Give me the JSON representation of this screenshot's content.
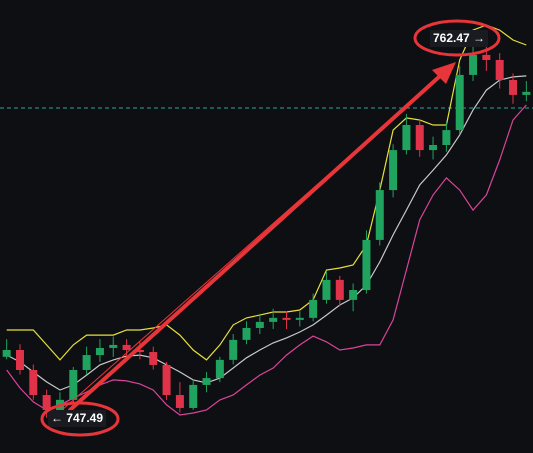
{
  "chart_data": {
    "type": "candlestick",
    "ylim": [
      746.1,
      764.0
    ],
    "up_color": "#1fa35f",
    "down_color": "#e0334a",
    "price_line": 759.73,
    "price_line_color": "#2aa5a0",
    "candles": {
      "open": [
        749.9,
        750.17,
        749.38,
        748.39,
        747.8,
        748.2,
        749.38,
        749.97,
        750.25,
        750.37,
        750.17,
        750.09,
        749.58,
        748.39,
        747.88,
        748.79,
        749.06,
        749.78,
        750.57,
        751.04,
        751.28,
        751.44,
        751.36,
        751.44,
        752.15,
        752.94,
        752.15,
        752.54,
        754.52,
        756.49,
        758.07,
        759.06,
        758.07,
        758.27,
        758.86,
        761.04,
        761.83,
        761.63,
        760.84,
        760.25
      ],
      "high": [
        750.6,
        750.4,
        749.6,
        748.6,
        748.5,
        749.5,
        750.3,
        750.6,
        750.7,
        750.6,
        750.5,
        750.3,
        749.7,
        748.9,
        749.0,
        749.3,
        749.9,
        750.8,
        751.3,
        751.6,
        751.8,
        751.7,
        751.7,
        752.4,
        753.3,
        753.1,
        752.8,
        754.9,
        756.8,
        758.3,
        759.5,
        759.3,
        758.6,
        759.2,
        761.4,
        762.2,
        762.47,
        761.9,
        761.1,
        760.8
      ],
      "low": [
        749.8,
        749.2,
        748.2,
        747.49,
        747.6,
        748.1,
        749.2,
        749.7,
        749.9,
        749.9,
        749.8,
        749.4,
        748.2,
        747.7,
        747.8,
        748.5,
        748.9,
        749.6,
        750.4,
        750.8,
        751.0,
        751.0,
        751.1,
        751.3,
        752.0,
        751.9,
        751.7,
        752.4,
        754.3,
        756.2,
        757.9,
        757.8,
        757.7,
        758.0,
        758.7,
        760.8,
        761.2,
        760.5,
        759.9,
        760.0
      ],
      "close": [
        750.17,
        749.38,
        748.39,
        747.8,
        748.2,
        749.38,
        749.97,
        750.25,
        750.37,
        750.17,
        750.09,
        749.58,
        748.39,
        747.88,
        748.79,
        749.06,
        749.78,
        750.57,
        751.04,
        751.28,
        751.44,
        751.36,
        751.44,
        752.15,
        752.94,
        752.15,
        752.54,
        754.52,
        756.49,
        758.07,
        759.06,
        758.07,
        758.27,
        758.86,
        761.04,
        761.83,
        761.63,
        760.84,
        760.25,
        760.37
      ]
    },
    "series": [
      {
        "color": "#e6e03a",
        "values": [
          750.96,
          750.96,
          750.96,
          750.37,
          749.78,
          750.37,
          750.76,
          750.76,
          750.76,
          750.96,
          750.96,
          751.04,
          751.16,
          750.76,
          750.17,
          749.78,
          750.37,
          751.16,
          751.44,
          751.55,
          751.67,
          751.67,
          751.75,
          752.15,
          753.33,
          753.41,
          753.53,
          754.32,
          756.49,
          758.86,
          759.34,
          759.26,
          759.06,
          759.06,
          761.63,
          762.81,
          763.01,
          762.81,
          762.42,
          762.22
        ]
      },
      {
        "color": "#c9c9c9",
        "values": [
          749.97,
          749.7,
          749.3,
          748.91,
          748.59,
          748.79,
          749.18,
          749.58,
          749.78,
          749.93,
          749.97,
          749.86,
          749.58,
          749.3,
          748.99,
          748.87,
          749.06,
          749.46,
          749.86,
          750.17,
          750.45,
          750.65,
          750.88,
          751.16,
          751.55,
          751.95,
          752.23,
          752.74,
          753.65,
          754.72,
          755.7,
          756.69,
          757.28,
          757.88,
          758.67,
          759.65,
          760.44,
          760.84,
          760.96,
          761.0
        ]
      },
      {
        "color": "#d9449a",
        "values": [
          749.38,
          748.67,
          748.12,
          747.8,
          748.0,
          748.27,
          748.51,
          748.79,
          748.99,
          748.95,
          748.83,
          748.59,
          748.0,
          747.6,
          747.68,
          747.8,
          748.2,
          748.39,
          748.79,
          749.18,
          749.46,
          749.97,
          750.37,
          750.72,
          750.49,
          750.17,
          750.25,
          750.37,
          750.37,
          751.36,
          753.33,
          755.31,
          756.3,
          756.97,
          756.49,
          755.7,
          756.3,
          757.68,
          759.26,
          759.85
        ]
      }
    ],
    "annotations": [
      {
        "text": "← 747.49"
      },
      {
        "text": "762.47 →"
      }
    ]
  }
}
